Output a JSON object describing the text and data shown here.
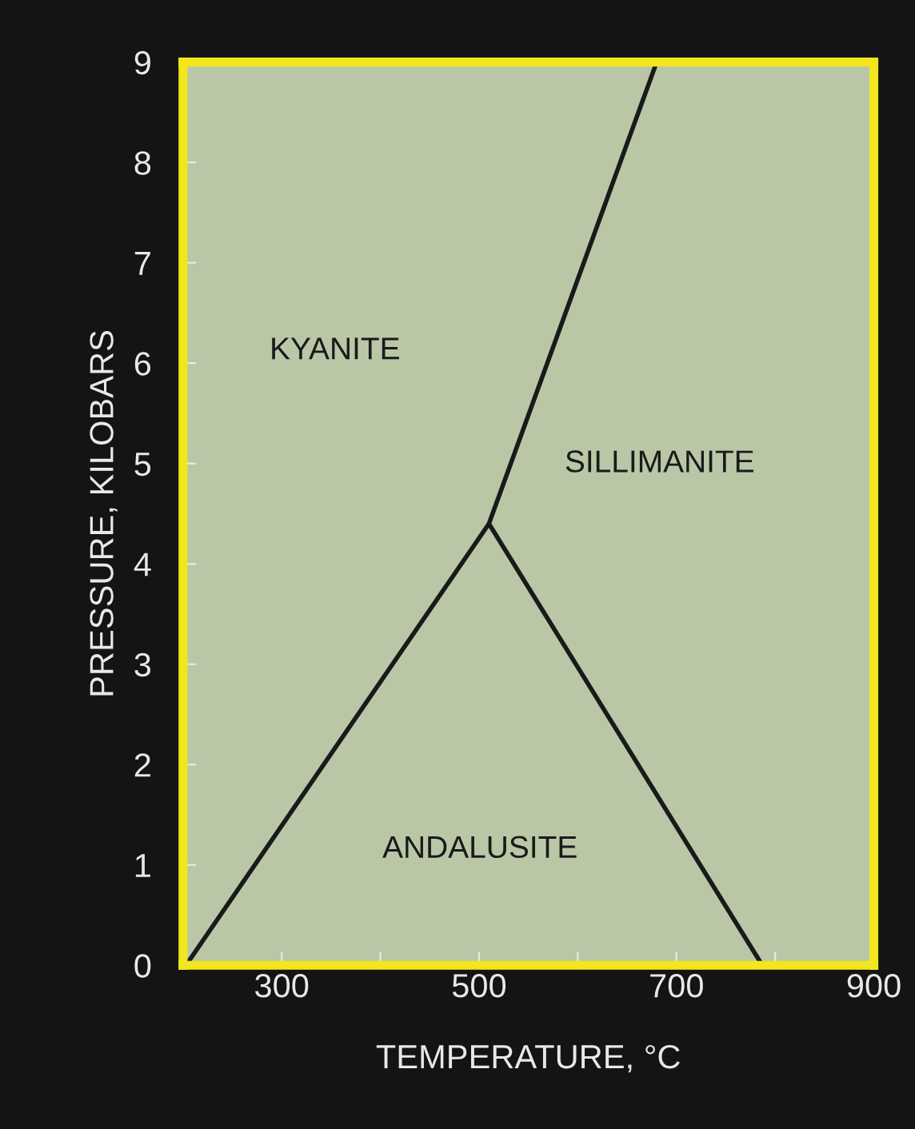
{
  "chart_data": {
    "type": "line",
    "xlabel": "TEMPERATURE, °C",
    "ylabel": "PRESSURE, KILOBARS",
    "xlim": [
      200,
      900
    ],
    "xticks": [
      300,
      {
        "value": 400,
        "label": null
      },
      500,
      {
        "value": 600,
        "label": null
      },
      700,
      {
        "value": 800,
        "label": null
      },
      900
    ],
    "ylim": [
      0,
      9
    ],
    "yticks": [
      0,
      1,
      2,
      3,
      4,
      5,
      6,
      7,
      8,
      9
    ],
    "series": [
      {
        "color": "#1a1a1a",
        "x": [
          203,
          510,
          680
        ],
        "values": [
          0,
          4.4,
          9
        ]
      },
      {
        "color": "#1a1a1a",
        "x": [
          510,
          787
        ],
        "values": [
          4.4,
          0
        ]
      }
    ],
    "annotations": [
      "KYANITE",
      "SILLIMANITE",
      "ANDALUSITE"
    ],
    "grid": false,
    "legend": false,
    "marker": "none",
    "line_style": "solid"
  }
}
